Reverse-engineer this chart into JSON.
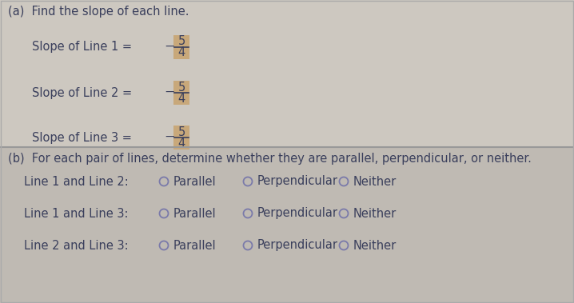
{
  "title_a": "(a)  Find the slope of each line.",
  "slope_labels": [
    "Slope of Line 1 = ",
    "Slope of Line 2 = ",
    "Slope of Line 3 = "
  ],
  "fraction_num": "5",
  "fraction_den": "4",
  "fraction_sign": "−",
  "section_b_title": "(b)  For each pair of lines, determine whether they are parallel, perpendicular, or neither.",
  "pair_labels": [
    "Line 1 and Line 2:",
    "Line 1 and Line 3:",
    "Line 2 and Line 3:"
  ],
  "options": [
    "Parallel",
    "Perpendicular",
    "Neither"
  ],
  "bg_color_top": "#cdc8c0",
  "bg_color_bottom": "#bfbab3",
  "highlight_color": "#c8a87a",
  "text_color": "#3a3f5c",
  "divider_color": "#999999",
  "border_color": "#aaaaaa",
  "font_size_main": 10.5,
  "font_size_title": 10.5,
  "circle_color": "#7a7aaa"
}
